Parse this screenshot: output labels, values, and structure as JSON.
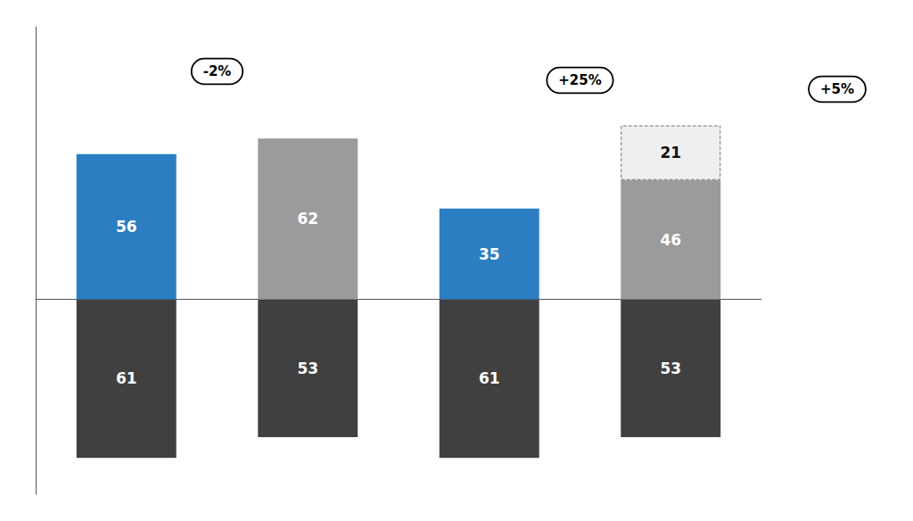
{
  "chart_data": {
    "type": "bar",
    "categories": [
      null,
      null,
      null,
      null
    ],
    "series": [
      {
        "values": [
          56,
          62,
          35,
          46
        ],
        "colors": [
          "#2B7EC1",
          "#9B9B9B",
          "#2B7EC1",
          "#9B9B9B"
        ]
      },
      {
        "values": [
          null,
          null,
          null,
          21
        ],
        "color": "#EFEFEF"
      },
      {
        "values": [
          61,
          53,
          61,
          53
        ],
        "color": "#404040",
        "axis": "y2"
      }
    ],
    "stacked": true,
    "data_labels": true,
    "tick_labels": false,
    "grid": false,
    "ylim": [
      0,
      105
    ],
    "y2lim": [
      0,
      75
    ],
    "annotations": [
      "-2%",
      "+25%",
      "+5%"
    ]
  }
}
